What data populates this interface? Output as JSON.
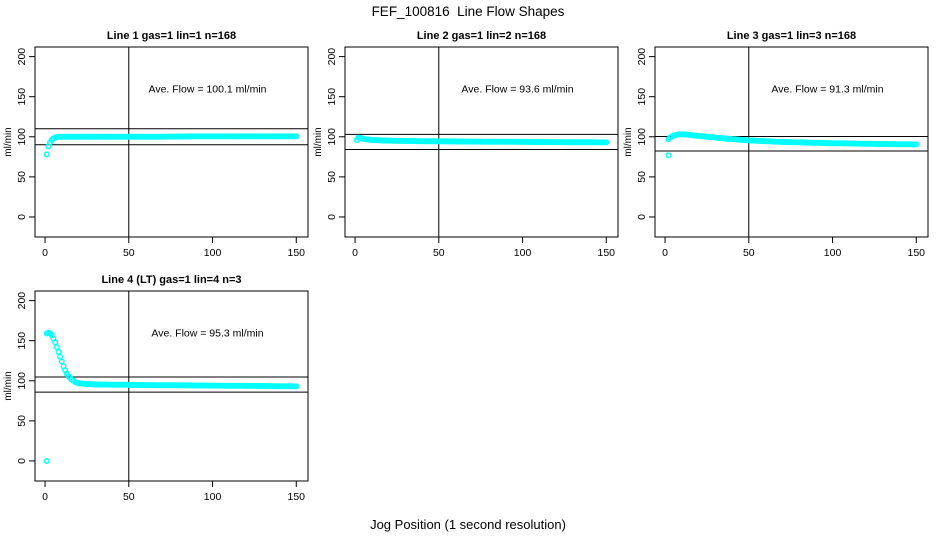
{
  "figure": {
    "title": "FEF_100816  Line Flow Shapes",
    "xlabel": "Jog Position (1 second resolution)",
    "background_color": "#ffffff",
    "point_color": "#00ffff",
    "line_color": "#000000"
  },
  "axes": {
    "ylabel": "ml/min",
    "x_ticks": [
      0,
      50,
      100,
      150
    ],
    "y_ticks": [
      0,
      50,
      100,
      150,
      200
    ],
    "x_range": [
      -6,
      157
    ],
    "y_range": [
      -25,
      212
    ],
    "grid": false
  },
  "chart_data": [
    {
      "type": "scatter",
      "panel": 1,
      "title": "Line 1 gas=1 lin=1 n=168",
      "annotation": "Ave. Flow =  100.1  ml/min",
      "ave_flow_ml_min": 100.1,
      "n": 168,
      "ref_line_high": 110.1,
      "ref_line_low": 90.1,
      "vline_x": 50,
      "x_step": 1,
      "anchors": [
        [
          1,
          78
        ],
        [
          2,
          88
        ],
        [
          3,
          93
        ],
        [
          4,
          96
        ],
        [
          5,
          98
        ],
        [
          6,
          99
        ],
        [
          8,
          100
        ],
        [
          30,
          100
        ],
        [
          60,
          100
        ],
        [
          90,
          100.5
        ],
        [
          150,
          100.5
        ]
      ],
      "outliers": []
    },
    {
      "type": "scatter",
      "panel": 2,
      "title": "Line 2 gas=1 lin=2 n=168",
      "annotation": "Ave. Flow =  93.6  ml/min",
      "ave_flow_ml_min": 93.6,
      "n": 168,
      "ref_line_high": 103.0,
      "ref_line_low": 84.2,
      "vline_x": 50,
      "x_step": 1,
      "anchors": [
        [
          1,
          96
        ],
        [
          2,
          99
        ],
        [
          3,
          98.5
        ],
        [
          4,
          98
        ],
        [
          6,
          97
        ],
        [
          10,
          96
        ],
        [
          15,
          95.5
        ],
        [
          25,
          95
        ],
        [
          40,
          94.5
        ],
        [
          70,
          94
        ],
        [
          110,
          93.5
        ],
        [
          150,
          93
        ]
      ],
      "outliers": []
    },
    {
      "type": "scatter",
      "panel": 3,
      "title": "Line 3 gas=1 lin=3 n=168",
      "annotation": "Ave. Flow =  91.3  ml/min",
      "ave_flow_ml_min": 91.3,
      "n": 168,
      "ref_line_high": 100.4,
      "ref_line_low": 82.2,
      "vline_x": 50,
      "x_step": 1,
      "anchors": [
        [
          2,
          97
        ],
        [
          3,
          99
        ],
        [
          5,
          101.5
        ],
        [
          8,
          103
        ],
        [
          12,
          103
        ],
        [
          18,
          101.5
        ],
        [
          25,
          100
        ],
        [
          35,
          98
        ],
        [
          50,
          95.5
        ],
        [
          70,
          93.5
        ],
        [
          100,
          92
        ],
        [
          130,
          91
        ],
        [
          150,
          90.5
        ]
      ],
      "outliers": [
        [
          2,
          77
        ]
      ]
    },
    {
      "type": "scatter",
      "panel": 4,
      "title": "Line 4 (LT) gas=1 lin=4 n=3",
      "annotation": "Ave. Flow =  95.3  ml/min",
      "ave_flow_ml_min": 95.3,
      "n": 3,
      "ref_line_high": 104.8,
      "ref_line_low": 85.8,
      "vline_x": 50,
      "x_step": 1,
      "anchors": [
        [
          1,
          159
        ],
        [
          2,
          160
        ],
        [
          3,
          159
        ],
        [
          4,
          157
        ],
        [
          5,
          153
        ],
        [
          6,
          148
        ],
        [
          7,
          142
        ],
        [
          8,
          136
        ],
        [
          9,
          130
        ],
        [
          10,
          124
        ],
        [
          11,
          118
        ],
        [
          12,
          113
        ],
        [
          13,
          109
        ],
        [
          14,
          106
        ],
        [
          15,
          103.5
        ],
        [
          16,
          101.5
        ],
        [
          17,
          100
        ],
        [
          18,
          98.5
        ],
        [
          19,
          97.5
        ],
        [
          20,
          97
        ],
        [
          24,
          96
        ],
        [
          30,
          95.5
        ],
        [
          45,
          95
        ],
        [
          70,
          94.5
        ],
        [
          100,
          94
        ],
        [
          130,
          93.5
        ],
        [
          150,
          93
        ]
      ],
      "outliers": [
        [
          1,
          0
        ]
      ]
    }
  ]
}
